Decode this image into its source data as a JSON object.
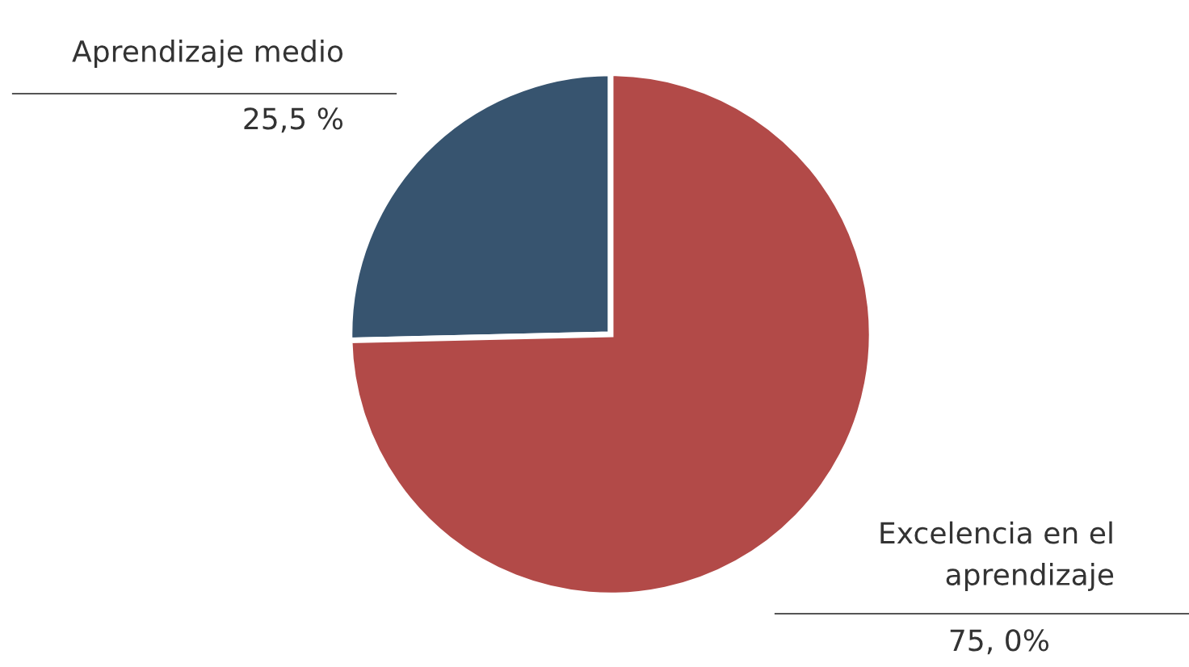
{
  "chart_data": {
    "type": "pie",
    "categories": [
      "Aprendizaje medio",
      "Excelencia en el\naprendizaje"
    ],
    "values": [
      25.5,
      75.0
    ],
    "colors": [
      "#37546f",
      "#b24a48"
    ],
    "value_labels": [
      "25,5 %",
      "75, 0%"
    ]
  }
}
